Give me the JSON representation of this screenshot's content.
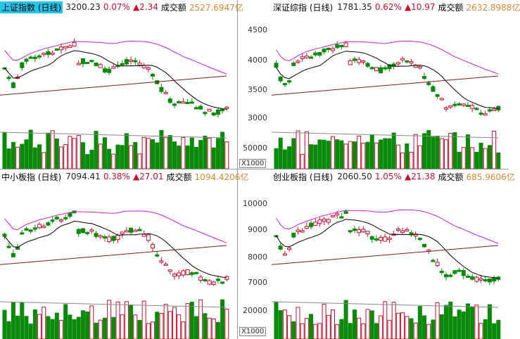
{
  "panels": [
    {
      "title": "上证指数 (日线)",
      "price": "3200.23",
      "pct": "0.07%",
      "change": "▲2.34",
      "vol_label": "成交额",
      "vol": "2527.6947亿",
      "axis_ticks": [],
      "vol_ticks": [],
      "unit": ""
    },
    {
      "title": "深证综指 (日线)",
      "price": "1781.35",
      "pct": "0.62%",
      "change": "▲10.97",
      "vol_label": "成交额",
      "vol": "2632.8988亿",
      "axis_ticks": [
        "4500",
        "4000",
        "3500",
        "3000"
      ],
      "vol_ticks": [
        "50000"
      ],
      "unit": "X1000"
    },
    {
      "title": "中小板指 (日线)",
      "price": "7094.41",
      "pct": "0.38%",
      "change": "▲27.01",
      "vol_label": "成交额",
      "vol": "1094.4206亿",
      "axis_ticks": [],
      "vol_ticks": [],
      "unit": ""
    },
    {
      "title": "创业板指 (日线)",
      "price": "2060.50",
      "pct": "1.05%",
      "change": "▲21.38",
      "vol_label": "成交额",
      "vol": "685.9606亿",
      "axis_ticks": [
        "10000",
        "9000",
        "8000",
        "7000"
      ],
      "vol_ticks": [
        "20000"
      ],
      "unit": "X1000"
    }
  ],
  "colors": {
    "up": "#c8102e",
    "down": "#0a8a0a",
    "ma_short": "#000000",
    "ma_mid": "#cc22cc",
    "ma_long": "#7a1a1a"
  }
}
